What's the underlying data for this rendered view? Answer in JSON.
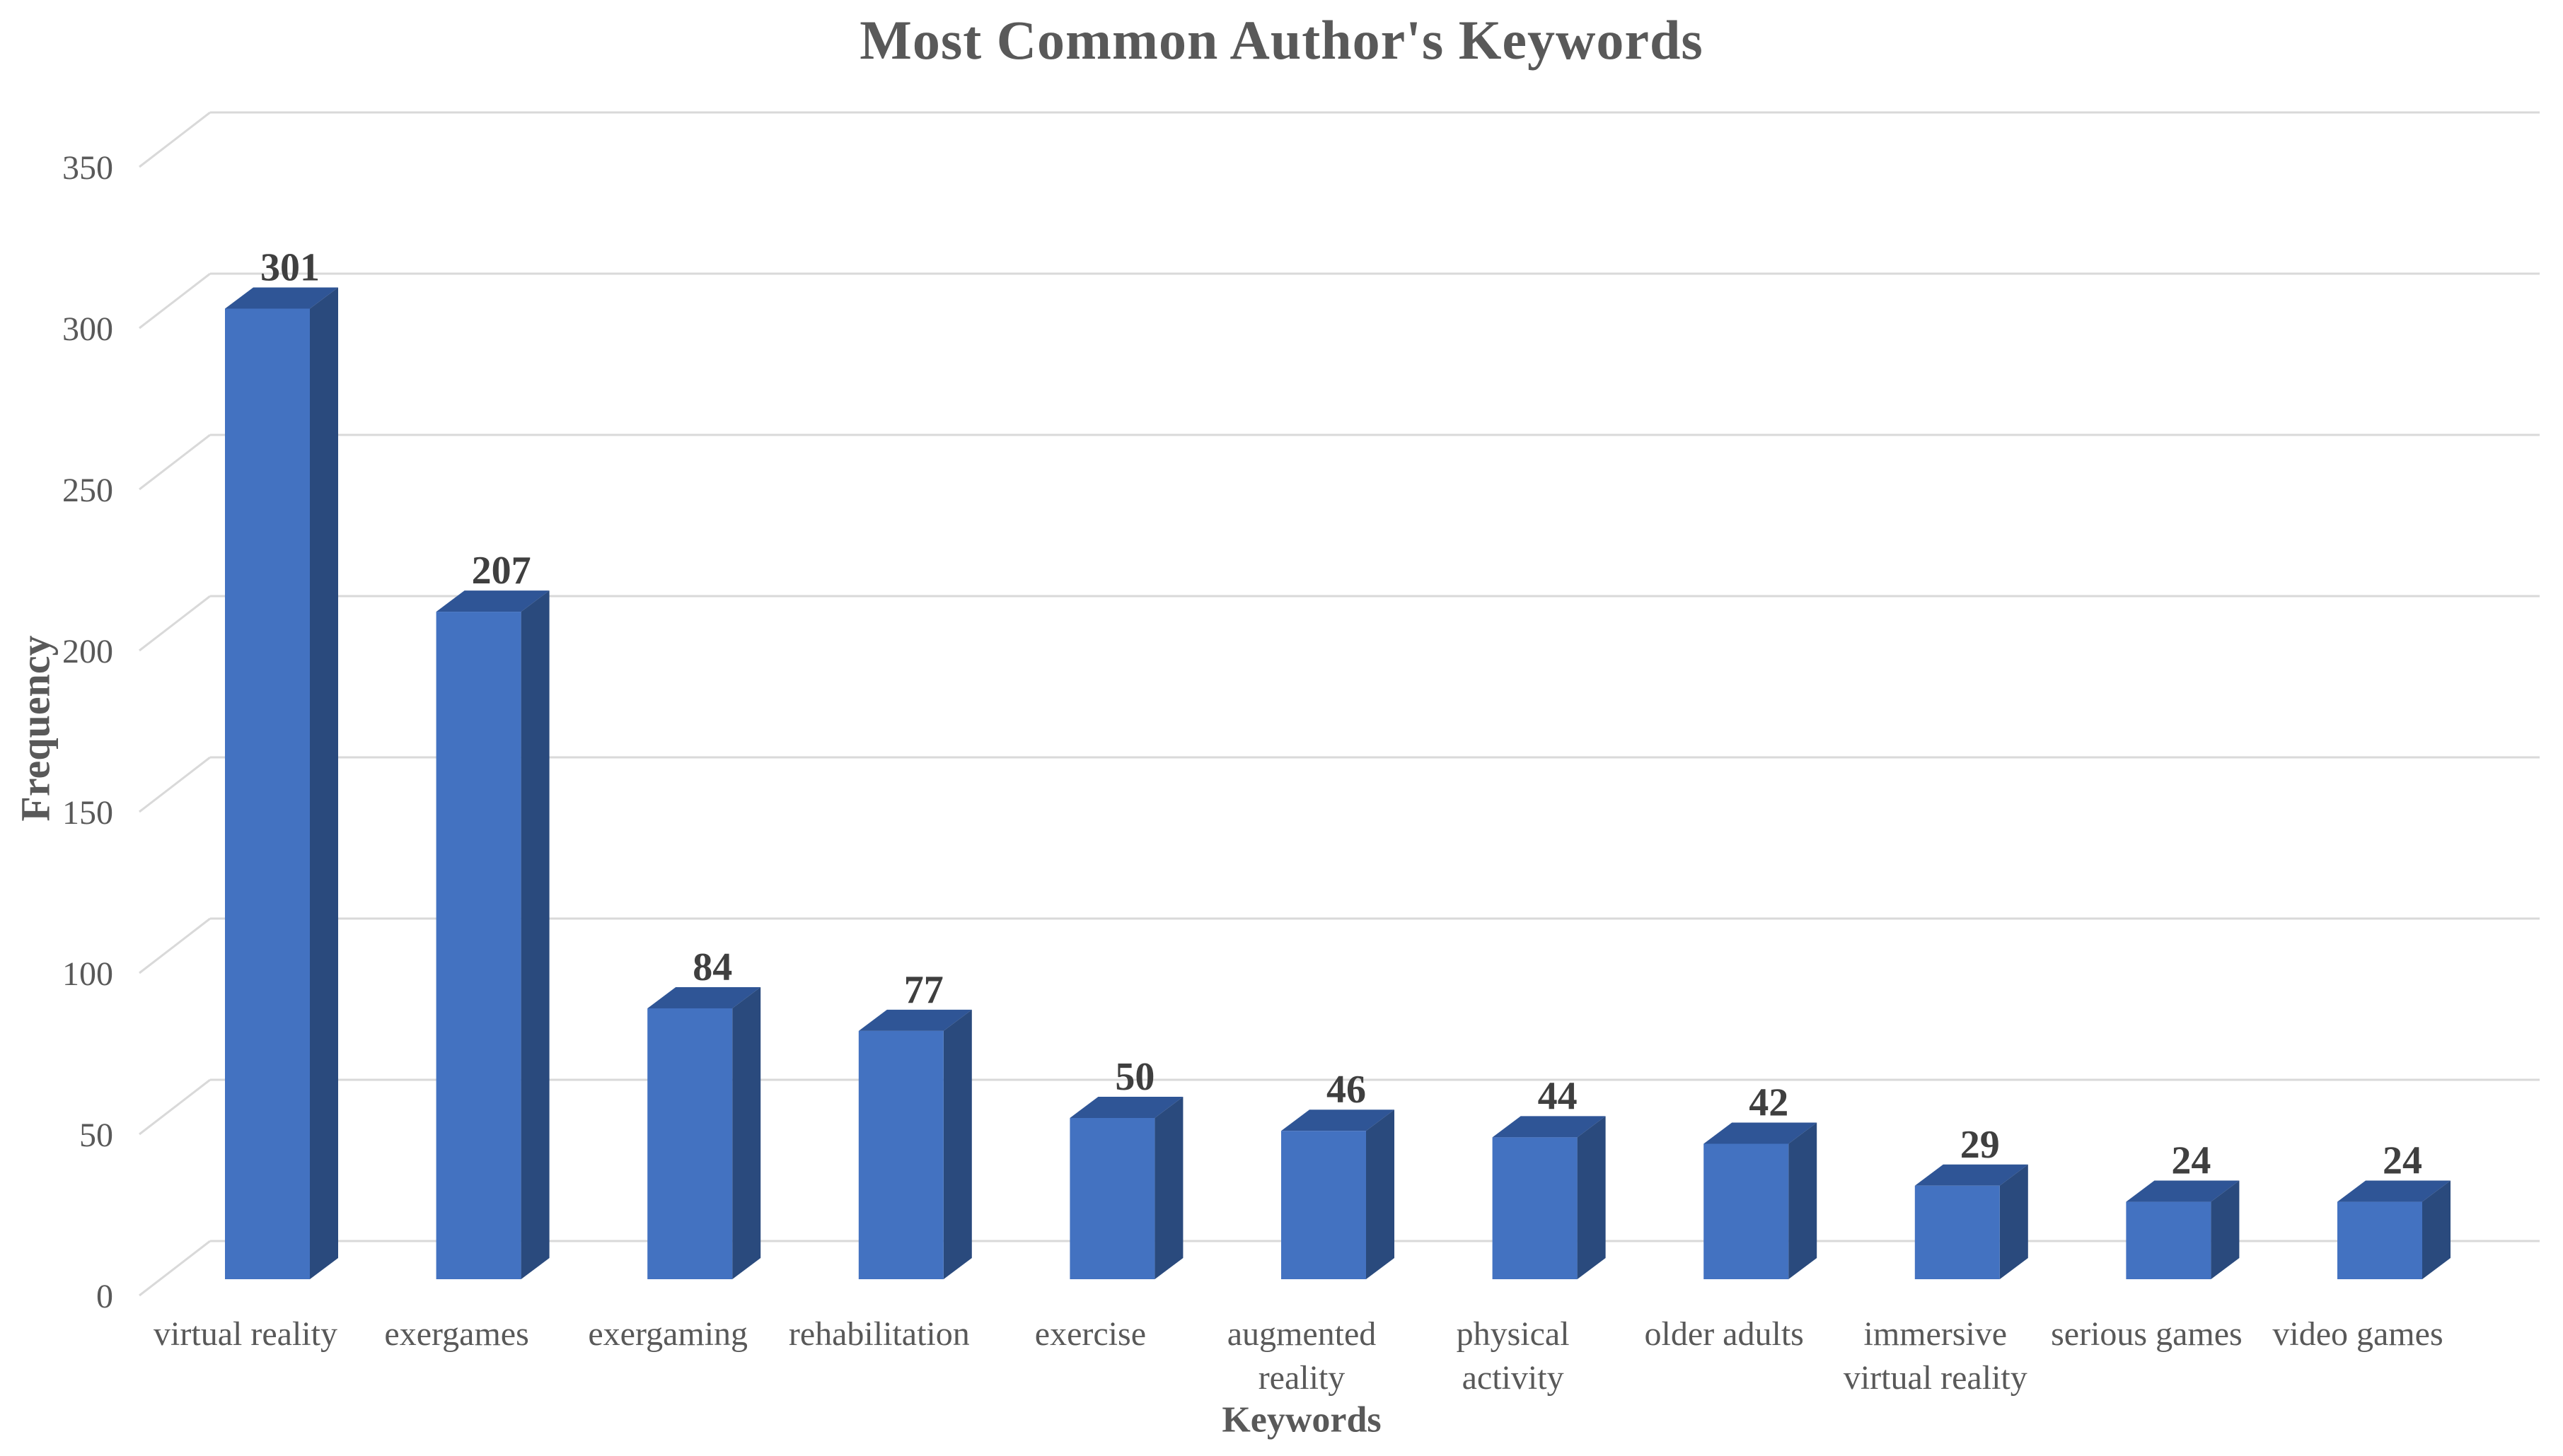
{
  "title": "Most Common Author's Keywords",
  "chart_data": {
    "type": "bar",
    "style": "3d-column",
    "title": "Most Common Author's Keywords",
    "xlabel": "Keywords",
    "ylabel": "Frequency",
    "categories": [
      "virtual reality",
      "exergames",
      "exergaming",
      "rehabilitation",
      "exercise",
      "augmented reality",
      "physical activity",
      "older adults",
      "immersive virtual reality",
      "serious games",
      "video games"
    ],
    "category_label_lines": [
      [
        "virtual reality"
      ],
      [
        "exergames"
      ],
      [
        "exergaming"
      ],
      [
        "rehabilitation"
      ],
      [
        "exercise"
      ],
      [
        "augmented",
        "reality"
      ],
      [
        "physical",
        "activity"
      ],
      [
        "older adults"
      ],
      [
        "immersive",
        "virtual reality"
      ],
      [
        "serious games"
      ],
      [
        "video games"
      ]
    ],
    "values": [
      301,
      207,
      84,
      77,
      50,
      46,
      44,
      42,
      29,
      24,
      24
    ],
    "data_labels": [
      "301",
      "207",
      "84",
      "77",
      "50",
      "46",
      "44",
      "42",
      "29",
      "24",
      "24"
    ],
    "y_ticks": [
      0,
      50,
      100,
      150,
      200,
      250,
      300,
      350
    ],
    "ylim": [
      0,
      350
    ],
    "grid": true,
    "legend": false,
    "colors": {
      "bar_front": "#4372C1",
      "bar_top": "#2F5596",
      "bar_side": "#2A4A7D",
      "grid": "#D9D9D9",
      "axis_text": "#595959",
      "data_label": "#3F3F3F",
      "background": "#FFFFFF"
    }
  }
}
